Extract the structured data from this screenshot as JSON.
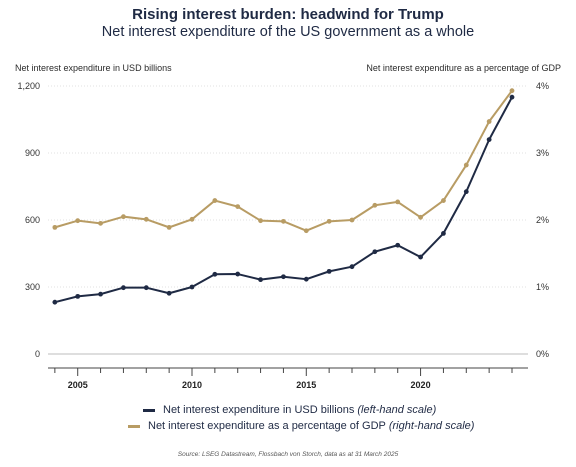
{
  "title": "Rising interest burden: headwind for Trump",
  "subtitle": "Net interest expenditure of the US government as a whole",
  "left_axis_label": "Net interest expenditure in USD billions",
  "right_axis_label": "Net interest expenditure as a percentage of GDP",
  "legend": {
    "series1_main": "Net interest expenditure in USD billions",
    "series1_note": "(left-hand scale)",
    "series2_main": "Net interest expenditure as a percentage of GDP",
    "series2_note": "(right-hand scale)"
  },
  "source": "Source: LSEG Datastream, Flossbach von Storch, data as at 31 March 2025",
  "colors": {
    "navy": "#1f2a44",
    "gold": "#b89c64",
    "grid": "#cfcfcf"
  },
  "chart_data": {
    "type": "line",
    "x": [
      2004,
      2005,
      2006,
      2007,
      2008,
      2009,
      2010,
      2011,
      2012,
      2013,
      2014,
      2015,
      2016,
      2017,
      2018,
      2019,
      2020,
      2021,
      2022,
      2023,
      2024
    ],
    "xticks": [
      "2005",
      "2010",
      "2015",
      "2020"
    ],
    "xtick_values": [
      2005,
      2010,
      2015,
      2020
    ],
    "yticks_left": [
      "0",
      "300",
      "600",
      "900",
      "1,200"
    ],
    "yticks_left_values": [
      0,
      300,
      600,
      900,
      1200
    ],
    "yticks_right": [
      "0%",
      "1%",
      "2%",
      "3%",
      "4%"
    ],
    "yticks_right_values": [
      0,
      1,
      2,
      3,
      4
    ],
    "ylim_left": [
      0,
      1200
    ],
    "ylim_right": [
      0,
      4
    ],
    "xlim": [
      2003.7,
      2024.7
    ],
    "grid": "horizontal",
    "series": [
      {
        "name": "Net interest expenditure in USD billions",
        "axis": "left",
        "color": "#1f2a44",
        "values": [
          232,
          258,
          268,
          297,
          297,
          272,
          300,
          357,
          358,
          333,
          346,
          335,
          370,
          391,
          458,
          487,
          434,
          540,
          727,
          960,
          1150
        ]
      },
      {
        "name": "Net interest expenditure as a percentage of GDP",
        "axis": "right",
        "color": "#b89c64",
        "values": [
          1.89,
          1.99,
          1.95,
          2.05,
          2.01,
          1.89,
          2.01,
          2.29,
          2.2,
          1.99,
          1.98,
          1.84,
          1.98,
          2.0,
          2.22,
          2.27,
          2.04,
          2.29,
          2.82,
          3.47,
          3.93
        ]
      }
    ]
  }
}
